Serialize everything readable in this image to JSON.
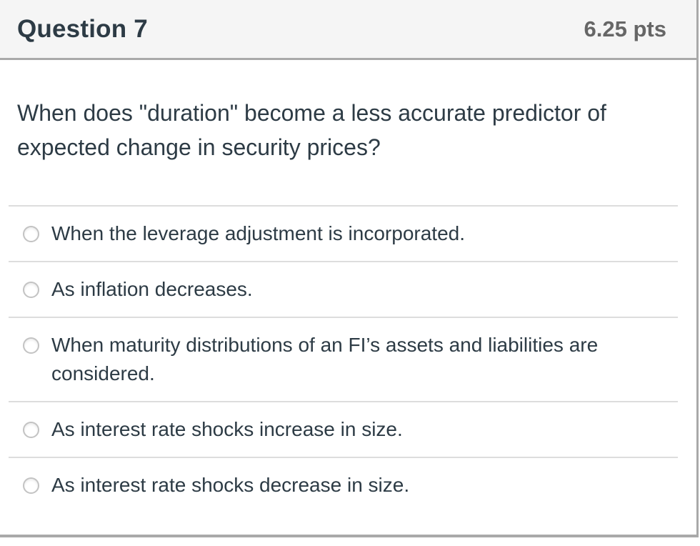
{
  "header": {
    "title": "Question 7",
    "points": "6.25 pts"
  },
  "question": {
    "text": "When does \"duration\" become a less accurate predictor of expected change in security prices?"
  },
  "answers": [
    "When the leverage adjustment is incorporated.",
    "As inflation decreases.",
    "When maturity distributions of an FI’s assets and liabilities are considered.",
    "As interest rate shocks increase in size.",
    "As interest rate shocks decrease in size."
  ],
  "colors": {
    "header_bg": "#f5f5f5",
    "border": "#a9a9a9",
    "text": "#2d3b45",
    "points_text": "#666666",
    "divider": "#dddddd",
    "radio_border": "#c3c3c3"
  }
}
